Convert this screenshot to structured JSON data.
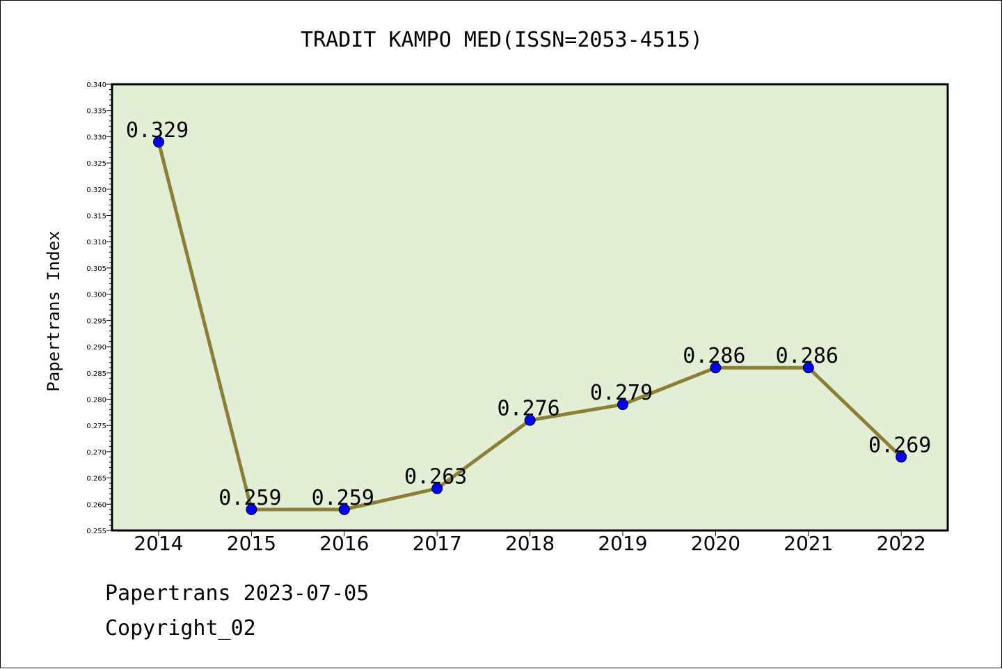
{
  "chart_data": {
    "type": "line",
    "title": "TRADIT KAMPO MED(ISSN=2053-4515)",
    "xlabel": "",
    "ylabel": "Papertrans Index",
    "categories": [
      "2014",
      "2015",
      "2016",
      "2017",
      "2018",
      "2019",
      "2020",
      "2021",
      "2022"
    ],
    "values": [
      0.329,
      0.259,
      0.259,
      0.263,
      0.276,
      0.279,
      0.286,
      0.286,
      0.269
    ],
    "data_labels": [
      "0.329",
      "0.259",
      "0.259",
      "0.263",
      "0.276",
      "0.279",
      "0.286",
      "0.286",
      "0.269"
    ],
    "ylim": [
      0.255,
      0.34
    ],
    "yticks": [
      "0.255",
      "0.260",
      "0.265",
      "0.270",
      "0.275",
      "0.280",
      "0.285",
      "0.290",
      "0.295",
      "0.300",
      "0.305",
      "0.310",
      "0.315",
      "0.320",
      "0.325",
      "0.330",
      "0.335",
      "0.340"
    ],
    "grid": false,
    "colors": {
      "plot_background": "#e2efd5",
      "line": "#8b7f35",
      "marker": "#0000ff"
    }
  },
  "footer": {
    "line1": "Papertrans 2023-07-05",
    "line2": "Copyright_02"
  }
}
